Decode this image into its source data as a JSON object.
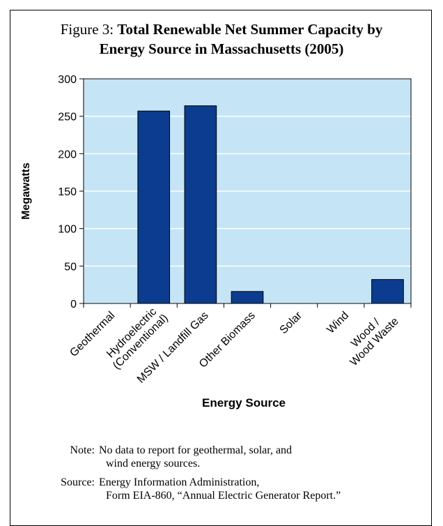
{
  "chart_data": {
    "type": "bar",
    "figure_label": "Figure 3:",
    "title": "Total Renewable Net Summer Capacity by Energy Source in Massachusetts (2005)",
    "categories": [
      "Geothermal",
      "Hydroelectric\n(Conventional)",
      "MSW / Landfill Gas",
      "Other Biomass",
      "Solar",
      "Wind",
      "Wood /\nWood Waste"
    ],
    "values": [
      null,
      257,
      264,
      16,
      null,
      null,
      32
    ],
    "color": "#0b3c8f",
    "ylim": [
      0,
      300
    ],
    "yticks": [
      0,
      50,
      100,
      150,
      200,
      250,
      300
    ],
    "grid": true,
    "ylabel": "Megawatts",
    "xlabel": "Energy Source",
    "note_label": "Note:",
    "note": "No data to report for geothermal, solar, and\nwind energy sources.",
    "source_label": "Source:",
    "source": "Energy Information Administration,\nForm EIA-860, “Annual Electric Generator Report.”"
  }
}
